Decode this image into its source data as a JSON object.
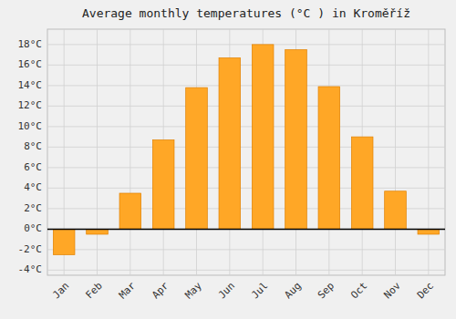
{
  "chart_data": {
    "type": "bar",
    "title": "Average monthly temperatures (°C ) in Kroměříž",
    "categories": [
      "Jan",
      "Feb",
      "Mar",
      "Apr",
      "May",
      "Jun",
      "Jul",
      "Aug",
      "Sep",
      "Oct",
      "Nov",
      "Dec"
    ],
    "values": [
      -2.5,
      -0.5,
      3.5,
      8.7,
      13.8,
      16.7,
      18.0,
      17.5,
      13.9,
      9.0,
      3.7,
      -0.5
    ],
    "color": "#FFA726",
    "ylim": [
      -4.5,
      19.5
    ],
    "yticks": [
      {
        "value": -4,
        "label": "-4°C"
      },
      {
        "value": -2,
        "label": "-2°C"
      },
      {
        "value": 0,
        "label": "0°C"
      },
      {
        "value": 2,
        "label": "2°C"
      },
      {
        "value": 4,
        "label": "4°C"
      },
      {
        "value": 6,
        "label": "6°C"
      },
      {
        "value": 8,
        "label": "8°C"
      },
      {
        "value": 10,
        "label": "10°C"
      },
      {
        "value": 12,
        "label": "12°C"
      },
      {
        "value": 14,
        "label": "14°C"
      },
      {
        "value": 16,
        "label": "16°C"
      },
      {
        "value": 18,
        "label": "18°C"
      }
    ],
    "grid": true
  }
}
